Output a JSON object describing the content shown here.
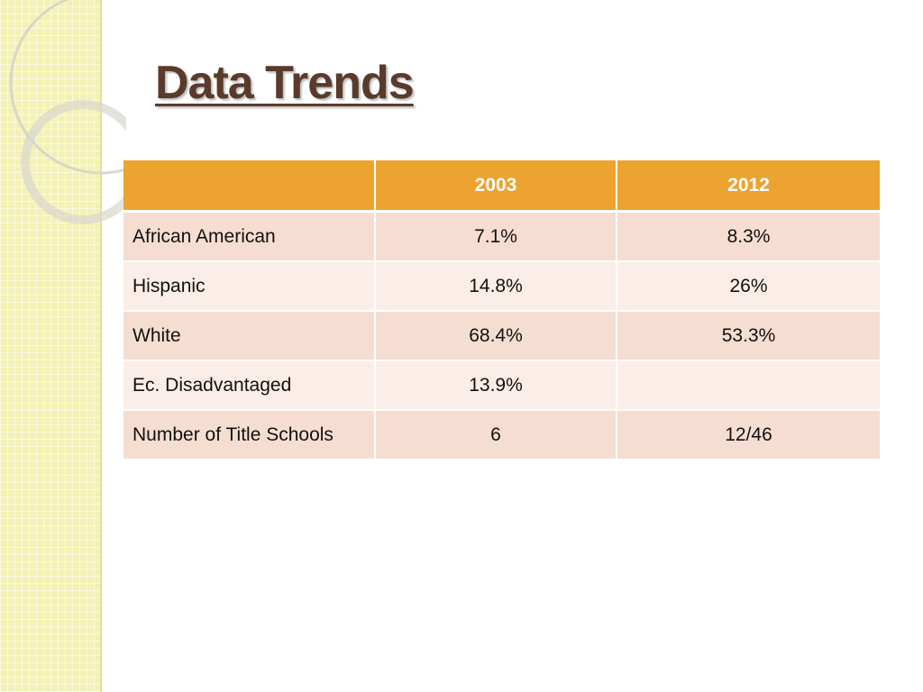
{
  "slide": {
    "title": "Data Trends"
  },
  "table": {
    "headers": [
      "",
      "2003",
      "2012"
    ],
    "rows": [
      [
        "African American",
        "7.1%",
        "8.3%"
      ],
      [
        "Hispanic",
        "14.8%",
        "26%"
      ],
      [
        "White",
        "68.4%",
        "53.3%"
      ],
      [
        "Ec. Disadvantaged",
        "13.9%",
        ""
      ],
      [
        "Number of Title Schools",
        "6",
        "12/46"
      ]
    ]
  },
  "colors": {
    "header": "#eca330",
    "row_odd": "#f6ddd1",
    "row_even": "#fbede7",
    "title": "#5a3a2a",
    "sidebar": "#f3f2b4"
  }
}
